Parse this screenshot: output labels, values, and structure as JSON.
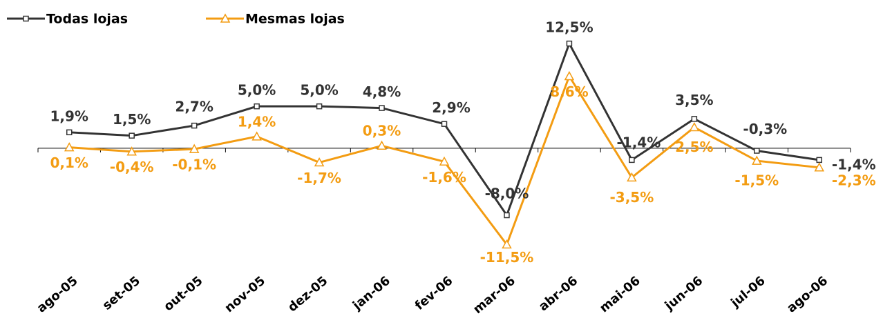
{
  "chart_data": {
    "type": "line",
    "categories": [
      "ago-05",
      "set-05",
      "out-05",
      "nov-05",
      "dez-05",
      "jan-06",
      "fev-06",
      "mar-06",
      "abr-06",
      "mai-06",
      "jun-06",
      "jul-06",
      "ago-06"
    ],
    "series": [
      {
        "name": "Todas lojas",
        "color": "#333333",
        "marker": "square",
        "values": [
          1.9,
          1.5,
          2.7,
          5.0,
          5.0,
          4.8,
          2.9,
          -8.0,
          12.5,
          -1.4,
          3.5,
          -0.3,
          -1.4
        ],
        "value_labels": [
          "1,9%",
          "1,5%",
          "2,7%",
          "5,0%",
          "5,0%",
          "4,8%",
          "2,9%",
          "-8,0%",
          "12,5%",
          "-1,4%",
          "3,5%",
          "-0,3%",
          "-1,4%"
        ]
      },
      {
        "name": "Mesmas lojas",
        "color": "#f39c12",
        "marker": "triangle",
        "values": [
          0.1,
          -0.4,
          -0.1,
          1.4,
          -1.7,
          0.3,
          -1.6,
          -11.5,
          8.6,
          -3.5,
          2.5,
          -1.5,
          -2.3
        ],
        "value_labels": [
          "0,1%",
          "-0,4%",
          "-0,1%",
          "1,4%",
          "-1,7%",
          "0,3%",
          "-1,6%",
          "-11,5%",
          "8,6%",
          "-3,5%",
          "2,5%",
          "-1,5%",
          "-2,3%"
        ]
      }
    ],
    "ylim": [
      -13.5,
      15
    ]
  }
}
